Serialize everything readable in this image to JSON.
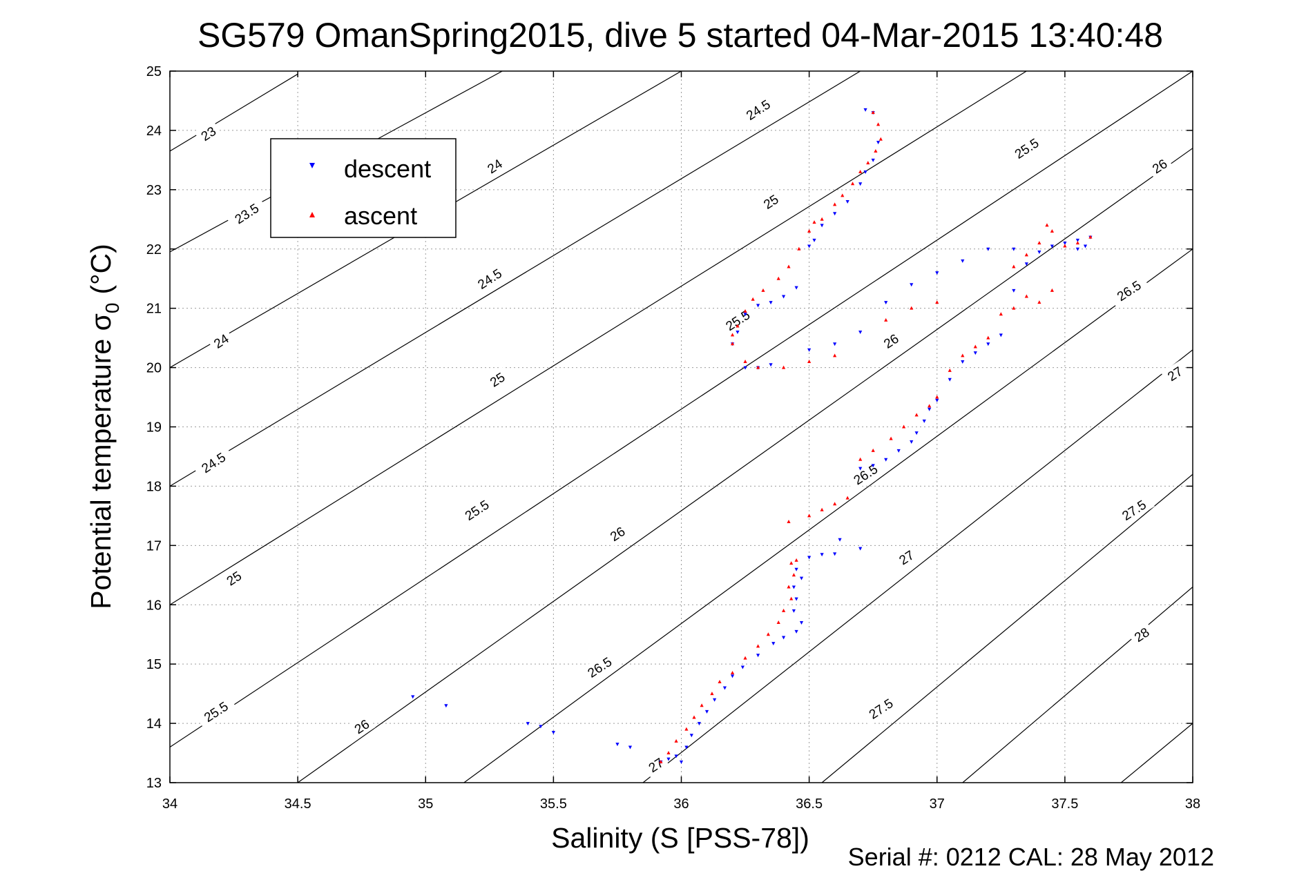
{
  "chart_data": {
    "type": "scatter",
    "title": "SG579 OmanSpring2015, dive 5 started 04-Mar-2015 13:40:48",
    "xlabel": "Salinity (S [PSS-78])",
    "ylabel_main": "Potential temperature σ",
    "ylabel_sub": "0",
    "ylabel_unit": "(°C)",
    "xlim": [
      34,
      38
    ],
    "ylim": [
      13,
      25
    ],
    "grid": true,
    "x_ticks": [
      "34",
      "34.5",
      "35",
      "35.5",
      "36",
      "36.5",
      "37",
      "37.5",
      "38"
    ],
    "y_ticks": [
      "13",
      "14",
      "15",
      "16",
      "17",
      "18",
      "19",
      "20",
      "21",
      "22",
      "23",
      "24",
      "25"
    ],
    "legend": {
      "placement": "top-left",
      "entries": [
        {
          "label": "descent",
          "color": "#0000ff",
          "marker": "triangle-down"
        },
        {
          "label": "ascent",
          "color": "#ff0000",
          "marker": "triangle-up"
        }
      ]
    },
    "contour_labels": [
      {
        "text": "23",
        "s": 34.15,
        "t": 23.95
      },
      {
        "text": "23.5",
        "s": 34.3,
        "t": 22.6
      },
      {
        "text": "24",
        "s": 35.27,
        "t": 23.4
      },
      {
        "text": "24",
        "s": 34.2,
        "t": 20.45
      },
      {
        "text": "24.5",
        "s": 36.3,
        "t": 24.35
      },
      {
        "text": "24.5",
        "s": 35.25,
        "t": 21.5
      },
      {
        "text": "24.5",
        "s": 34.17,
        "t": 18.4
      },
      {
        "text": "25",
        "s": 36.35,
        "t": 22.8
      },
      {
        "text": "25",
        "s": 35.28,
        "t": 19.8
      },
      {
        "text": "25",
        "s": 34.25,
        "t": 16.45
      },
      {
        "text": "25.5",
        "s": 37.35,
        "t": 23.7
      },
      {
        "text": "25.5",
        "s": 36.22,
        "t": 20.8
      },
      {
        "text": "25.5",
        "s": 35.2,
        "t": 17.6
      },
      {
        "text": "25.5",
        "s": 34.18,
        "t": 14.2
      },
      {
        "text": "26",
        "s": 37.87,
        "t": 23.4
      },
      {
        "text": "26",
        "s": 36.82,
        "t": 20.45
      },
      {
        "text": "26",
        "s": 35.75,
        "t": 17.2
      },
      {
        "text": "26",
        "s": 34.75,
        "t": 13.95
      },
      {
        "text": "26.5",
        "s": 37.75,
        "t": 21.3
      },
      {
        "text": "26.5",
        "s": 36.72,
        "t": 18.2
      },
      {
        "text": "26.5",
        "s": 35.68,
        "t": 14.95
      },
      {
        "text": "27",
        "s": 37.93,
        "t": 19.9
      },
      {
        "text": "27",
        "s": 36.88,
        "t": 16.8
      },
      {
        "text": "27",
        "s": 35.9,
        "t": 13.3
      },
      {
        "text": "27.5",
        "s": 37.77,
        "t": 17.6
      },
      {
        "text": "27.5",
        "s": 36.78,
        "t": 14.25
      },
      {
        "text": "28",
        "s": 37.8,
        "t": 15.5
      }
    ],
    "contour_lines": [
      {
        "level": "23",
        "points": [
          [
            34,
            23.65
          ],
          [
            34.5,
            24.95
          ]
        ]
      },
      {
        "level": "23.5",
        "points": [
          [
            34,
            21.95
          ],
          [
            35.3,
            25.0
          ]
        ]
      },
      {
        "level": "24",
        "points": [
          [
            34,
            20.0
          ],
          [
            36.0,
            25.0
          ]
        ]
      },
      {
        "level": "24.5",
        "points": [
          [
            34,
            18.0
          ],
          [
            36.7,
            25.0
          ]
        ]
      },
      {
        "level": "25",
        "points": [
          [
            34,
            16.0
          ],
          [
            37.35,
            25.0
          ]
        ]
      },
      {
        "level": "25.5",
        "points": [
          [
            34,
            13.6
          ],
          [
            38.0,
            25.0
          ]
        ]
      },
      {
        "level": "26",
        "points": [
          [
            34.5,
            13.0
          ],
          [
            38.0,
            23.7
          ]
        ]
      },
      {
        "level": "26.5",
        "points": [
          [
            35.15,
            13.0
          ],
          [
            38.0,
            22.0
          ]
        ]
      },
      {
        "level": "27",
        "points": [
          [
            35.85,
            13.0
          ],
          [
            38.0,
            20.3
          ]
        ]
      },
      {
        "level": "27.5",
        "points": [
          [
            36.55,
            13.0
          ],
          [
            38.0,
            18.2
          ]
        ]
      },
      {
        "level": "28",
        "points": [
          [
            37.1,
            13.0
          ],
          [
            38.0,
            16.3
          ]
        ]
      },
      {
        "level": "28.5",
        "points": [
          [
            37.72,
            13.0
          ],
          [
            38.0,
            14.0
          ]
        ]
      }
    ],
    "series": [
      {
        "name": "descent",
        "color": "#0000ff",
        "marker": "triangle-down",
        "points": [
          [
            35.92,
            13.35
          ],
          [
            35.95,
            13.4
          ],
          [
            36.0,
            13.35
          ],
          [
            35.98,
            13.45
          ],
          [
            36.02,
            13.6
          ],
          [
            36.04,
            13.8
          ],
          [
            36.07,
            14.0
          ],
          [
            36.1,
            14.2
          ],
          [
            36.13,
            14.4
          ],
          [
            36.17,
            14.6
          ],
          [
            36.2,
            14.8
          ],
          [
            36.24,
            14.95
          ],
          [
            36.3,
            15.15
          ],
          [
            36.36,
            15.35
          ],
          [
            36.4,
            15.45
          ],
          [
            36.45,
            15.55
          ],
          [
            36.47,
            15.7
          ],
          [
            36.44,
            15.9
          ],
          [
            36.45,
            16.1
          ],
          [
            36.44,
            16.3
          ],
          [
            36.47,
            16.45
          ],
          [
            36.45,
            16.6
          ],
          [
            36.5,
            16.8
          ],
          [
            36.55,
            16.85
          ],
          [
            36.6,
            16.86
          ],
          [
            36.7,
            16.95
          ],
          [
            36.62,
            17.1
          ],
          [
            36.7,
            18.3
          ],
          [
            36.75,
            18.35
          ],
          [
            36.8,
            18.45
          ],
          [
            36.85,
            18.6
          ],
          [
            36.9,
            18.75
          ],
          [
            36.92,
            18.9
          ],
          [
            36.95,
            19.1
          ],
          [
            36.97,
            19.3
          ],
          [
            37.0,
            19.45
          ],
          [
            37.05,
            19.8
          ],
          [
            37.1,
            20.1
          ],
          [
            37.15,
            20.25
          ],
          [
            37.2,
            20.4
          ],
          [
            37.25,
            20.55
          ],
          [
            37.3,
            21.3
          ],
          [
            37.35,
            21.75
          ],
          [
            37.4,
            21.95
          ],
          [
            37.45,
            22.05
          ],
          [
            37.5,
            22.1
          ],
          [
            37.55,
            22.15
          ],
          [
            37.6,
            22.2
          ],
          [
            37.58,
            22.05
          ],
          [
            37.55,
            22.0
          ],
          [
            37.3,
            22.0
          ],
          [
            37.2,
            22.0
          ],
          [
            37.1,
            21.8
          ],
          [
            37.0,
            21.6
          ],
          [
            36.9,
            21.4
          ],
          [
            36.8,
            21.1
          ],
          [
            36.7,
            20.6
          ],
          [
            36.6,
            20.4
          ],
          [
            36.5,
            20.3
          ],
          [
            36.35,
            20.05
          ],
          [
            36.3,
            20.0
          ],
          [
            36.25,
            20.0
          ],
          [
            36.2,
            20.4
          ],
          [
            36.22,
            20.6
          ],
          [
            36.25,
            20.9
          ],
          [
            36.3,
            21.05
          ],
          [
            36.35,
            21.1
          ],
          [
            36.4,
            21.2
          ],
          [
            36.45,
            21.35
          ],
          [
            36.5,
            22.05
          ],
          [
            36.52,
            22.15
          ],
          [
            36.55,
            22.4
          ],
          [
            36.6,
            22.6
          ],
          [
            36.65,
            22.8
          ],
          [
            36.7,
            23.1
          ],
          [
            36.72,
            23.3
          ],
          [
            36.75,
            23.5
          ],
          [
            36.77,
            23.8
          ],
          [
            36.75,
            24.3
          ],
          [
            36.72,
            24.35
          ],
          [
            34.95,
            14.45
          ],
          [
            35.08,
            14.3
          ],
          [
            35.4,
            14.0
          ],
          [
            35.45,
            13.95
          ],
          [
            35.5,
            13.85
          ],
          [
            35.75,
            13.65
          ],
          [
            35.8,
            13.6
          ]
        ]
      },
      {
        "name": "ascent",
        "color": "#ff0000",
        "marker": "triangle-up",
        "points": [
          [
            35.92,
            13.35
          ],
          [
            35.95,
            13.5
          ],
          [
            35.98,
            13.7
          ],
          [
            36.02,
            13.9
          ],
          [
            36.05,
            14.1
          ],
          [
            36.08,
            14.3
          ],
          [
            36.12,
            14.5
          ],
          [
            36.15,
            14.7
          ],
          [
            36.2,
            14.85
          ],
          [
            36.25,
            15.1
          ],
          [
            36.3,
            15.3
          ],
          [
            36.34,
            15.5
          ],
          [
            36.38,
            15.7
          ],
          [
            36.4,
            15.9
          ],
          [
            36.43,
            16.1
          ],
          [
            36.42,
            16.3
          ],
          [
            36.44,
            16.5
          ],
          [
            36.43,
            16.7
          ],
          [
            36.45,
            16.75
          ],
          [
            36.42,
            17.4
          ],
          [
            36.5,
            17.5
          ],
          [
            36.55,
            17.6
          ],
          [
            36.6,
            17.7
          ],
          [
            36.65,
            17.8
          ],
          [
            36.7,
            18.45
          ],
          [
            36.75,
            18.6
          ],
          [
            36.82,
            18.8
          ],
          [
            36.87,
            19.0
          ],
          [
            36.92,
            19.2
          ],
          [
            36.97,
            19.35
          ],
          [
            37.0,
            19.5
          ],
          [
            37.05,
            19.95
          ],
          [
            37.1,
            20.2
          ],
          [
            37.15,
            20.35
          ],
          [
            37.2,
            20.5
          ],
          [
            37.25,
            20.9
          ],
          [
            37.3,
            21.0
          ],
          [
            37.35,
            21.2
          ],
          [
            37.4,
            21.1
          ],
          [
            37.45,
            21.3
          ],
          [
            37.3,
            21.7
          ],
          [
            37.35,
            21.9
          ],
          [
            37.4,
            22.1
          ],
          [
            37.45,
            22.3
          ],
          [
            37.43,
            22.4
          ],
          [
            37.5,
            22.05
          ],
          [
            37.55,
            22.1
          ],
          [
            37.6,
            22.2
          ],
          [
            37.0,
            21.1
          ],
          [
            36.9,
            21.0
          ],
          [
            36.8,
            20.8
          ],
          [
            36.6,
            20.2
          ],
          [
            36.5,
            20.1
          ],
          [
            36.4,
            20.0
          ],
          [
            36.3,
            20.0
          ],
          [
            36.25,
            20.1
          ],
          [
            36.2,
            20.4
          ],
          [
            36.2,
            20.55
          ],
          [
            36.22,
            20.7
          ],
          [
            36.25,
            20.95
          ],
          [
            36.28,
            21.15
          ],
          [
            36.32,
            21.3
          ],
          [
            36.38,
            21.5
          ],
          [
            36.42,
            21.7
          ],
          [
            36.46,
            22.0
          ],
          [
            36.5,
            22.3
          ],
          [
            36.52,
            22.45
          ],
          [
            36.55,
            22.5
          ],
          [
            36.6,
            22.75
          ],
          [
            36.63,
            22.9
          ],
          [
            36.67,
            23.1
          ],
          [
            36.7,
            23.3
          ],
          [
            36.73,
            23.45
          ],
          [
            36.76,
            23.65
          ],
          [
            36.78,
            23.85
          ],
          [
            36.77,
            24.1
          ],
          [
            36.75,
            24.3
          ]
        ]
      }
    ]
  },
  "footer": {
    "text": "Serial #: 0212  CAL: 28 May 2012"
  }
}
